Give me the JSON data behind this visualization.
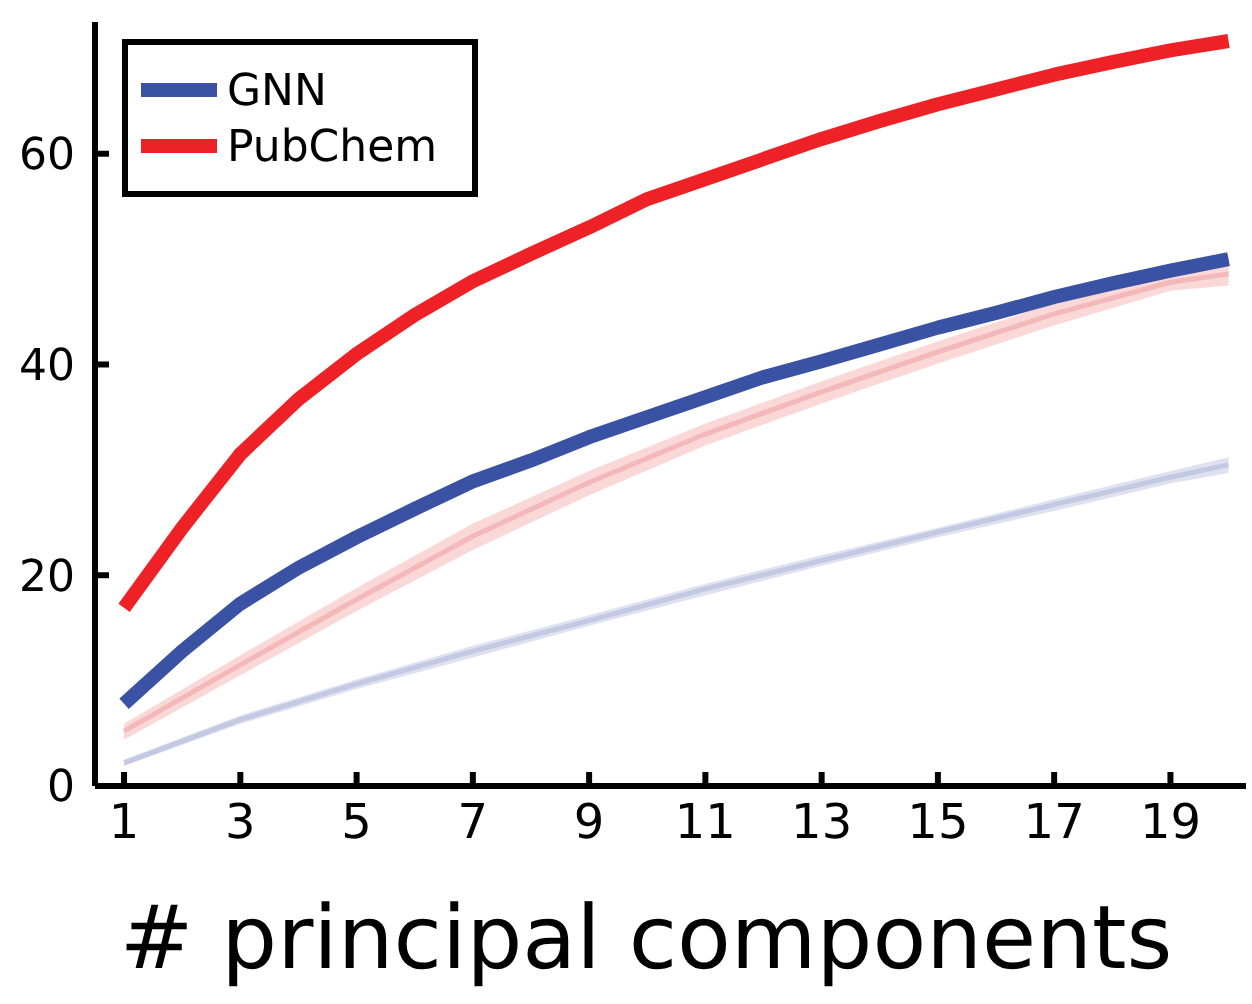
{
  "chart_data": {
    "type": "line",
    "xlabel": "# principal components",
    "x": [
      1,
      2,
      3,
      4,
      5,
      6,
      7,
      8,
      9,
      10,
      11,
      12,
      13,
      14,
      15,
      16,
      17,
      18,
      19,
      20
    ],
    "series": [
      {
        "type": "line",
        "color": "#c3c9e3",
        "x": [
          1,
          3,
          5,
          7,
          9,
          11,
          13,
          15,
          17,
          19,
          20
        ],
        "values": [
          2.2,
          6.3,
          9.7,
          12.8,
          15.7,
          18.7,
          21.4,
          24.1,
          26.7,
          29.3,
          30.5
        ],
        "lower": [
          1.9,
          5.9,
          9.2,
          12.2,
          15.2,
          18.1,
          20.9,
          23.6,
          26.1,
          28.7,
          29.7
        ],
        "upper": [
          2.5,
          6.7,
          10.1,
          13.3,
          16.2,
          19.2,
          21.9,
          24.5,
          27.2,
          29.9,
          31.2
        ]
      },
      {
        "type": "line",
        "color": "#f5b8b8",
        "x": [
          1,
          3,
          5,
          7,
          9,
          11,
          13,
          15,
          17,
          19,
          20
        ],
        "values": [
          5.2,
          11.5,
          17.7,
          23.7,
          28.8,
          33.4,
          37.4,
          41.2,
          44.8,
          47.8,
          48.6
        ],
        "lower": [
          4.4,
          10.5,
          16.6,
          22.4,
          27.6,
          32.3,
          36.3,
          40.1,
          43.7,
          47,
          47.5
        ],
        "upper": [
          5.9,
          12.4,
          18.8,
          24.9,
          29.9,
          34.4,
          38.4,
          42.2,
          45.8,
          48.5,
          49.6
        ]
      },
      {
        "name": "GNN",
        "color": "#3a52a3",
        "values": [
          7.8,
          12.8,
          17.3,
          20.7,
          23.6,
          26.3,
          28.9,
          30.9,
          33.1,
          35.0,
          36.9,
          38.8,
          40.3,
          41.9,
          43.5,
          44.9,
          46.4,
          47.7,
          48.9,
          50.0
        ]
      },
      {
        "name": "PubChem",
        "color": "#ee2226",
        "values": [
          16.9,
          24.5,
          31.5,
          36.7,
          41.0,
          44.7,
          47.9,
          50.5,
          53.0,
          55.7,
          57.6,
          59.5,
          61.4,
          63.1,
          64.7,
          66.1,
          67.5,
          68.7,
          69.8,
          70.7
        ]
      }
    ],
    "xlim": [
      0.5,
      20.3
    ],
    "xticks": [
      1,
      3,
      5,
      7,
      9,
      11,
      13,
      15,
      17,
      19
    ],
    "ylim": [
      0,
      72.5
    ],
    "yticks": [
      0,
      20,
      40,
      60
    ],
    "grid": false,
    "legend": "top left",
    "line_style": "solid",
    "marker": "none"
  }
}
